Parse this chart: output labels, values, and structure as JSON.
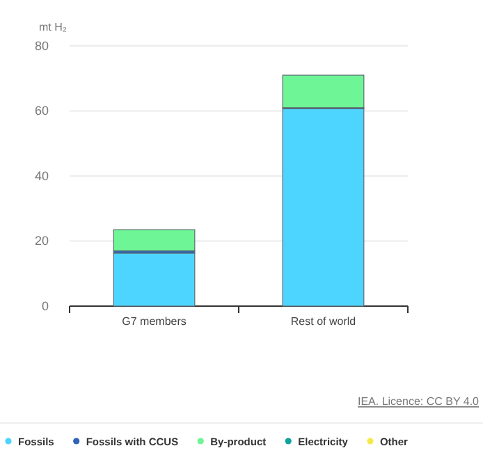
{
  "chart_data": {
    "type": "bar",
    "stacked": true,
    "ylabel": "mt H₂",
    "categories": [
      "G7 members",
      "Rest of world"
    ],
    "series": [
      {
        "name": "Fossils",
        "color": "#4dd5ff",
        "values": [
          16.3,
          60.7
        ]
      },
      {
        "name": "Fossils with CCUS",
        "color": "#2f64b5",
        "values": [
          0.7,
          0.3
        ]
      },
      {
        "name": "By-product",
        "color": "#6ef595",
        "values": [
          6.5,
          10
        ]
      },
      {
        "name": "Electricity",
        "color": "#10a39b",
        "values": [
          0,
          0
        ]
      },
      {
        "name": "Other",
        "color": "#f5e94a",
        "values": [
          0,
          0
        ]
      }
    ],
    "ylim": [
      0,
      80
    ],
    "yticks": [
      0,
      20,
      40,
      60,
      80
    ],
    "grid": "y",
    "legend": "bottom",
    "annotations": [
      "IEA. Licence: CC BY 4.0"
    ]
  }
}
